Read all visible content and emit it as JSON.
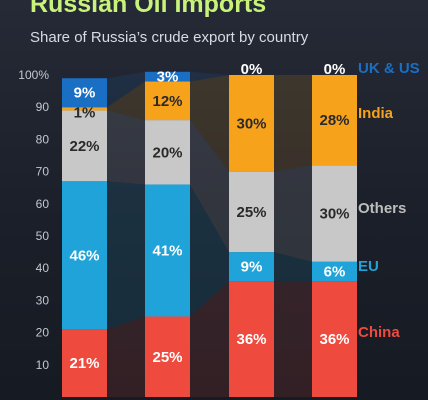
{
  "chart_data": {
    "type": "bar",
    "stacked": true,
    "title": "Russian Oil Imports",
    "subtitle": "Share of Russia’s crude export by country",
    "ylim": [
      0,
      100
    ],
    "yticks": [
      "10",
      "20",
      "30",
      "40",
      "50",
      "60",
      "70",
      "80",
      "90",
      "100%"
    ],
    "categories": [
      "",
      "",
      "",
      ""
    ],
    "series": [
      {
        "name": "China",
        "color": "#ee4a3e",
        "labelColor": "#ffffff",
        "values": [
          21,
          25,
          36,
          36
        ],
        "labels": [
          "21%",
          "25%",
          "36%",
          "36%"
        ]
      },
      {
        "name": "EU",
        "color": "#1fa3d8",
        "labelColor": "#ffffff",
        "values": [
          46,
          41,
          9,
          6
        ],
        "labels": [
          "46%",
          "41%",
          "9%",
          "6%"
        ]
      },
      {
        "name": "Others",
        "color": "#c8c8c8",
        "labelColor": "#2a2a2a",
        "values": [
          22,
          20,
          25,
          30
        ],
        "labels": [
          "22%",
          "20%",
          "25%",
          "30%"
        ]
      },
      {
        "name": "India",
        "color": "#f7a21b",
        "labelColor": "#2a2a2a",
        "values": [
          1,
          12,
          30,
          28
        ],
        "labels": [
          "1%",
          "12%",
          "30%",
          "28%"
        ]
      },
      {
        "name": "UK & US",
        "color": "#1a6fc4",
        "labelColor": "#ffffff",
        "values": [
          9,
          3,
          0,
          0
        ],
        "labels": [
          "9%",
          "3%",
          "0%",
          "0%"
        ]
      }
    ],
    "legend": [
      "UK & US",
      "India",
      "Others",
      "EU",
      "China"
    ],
    "legend_placement": "right"
  }
}
